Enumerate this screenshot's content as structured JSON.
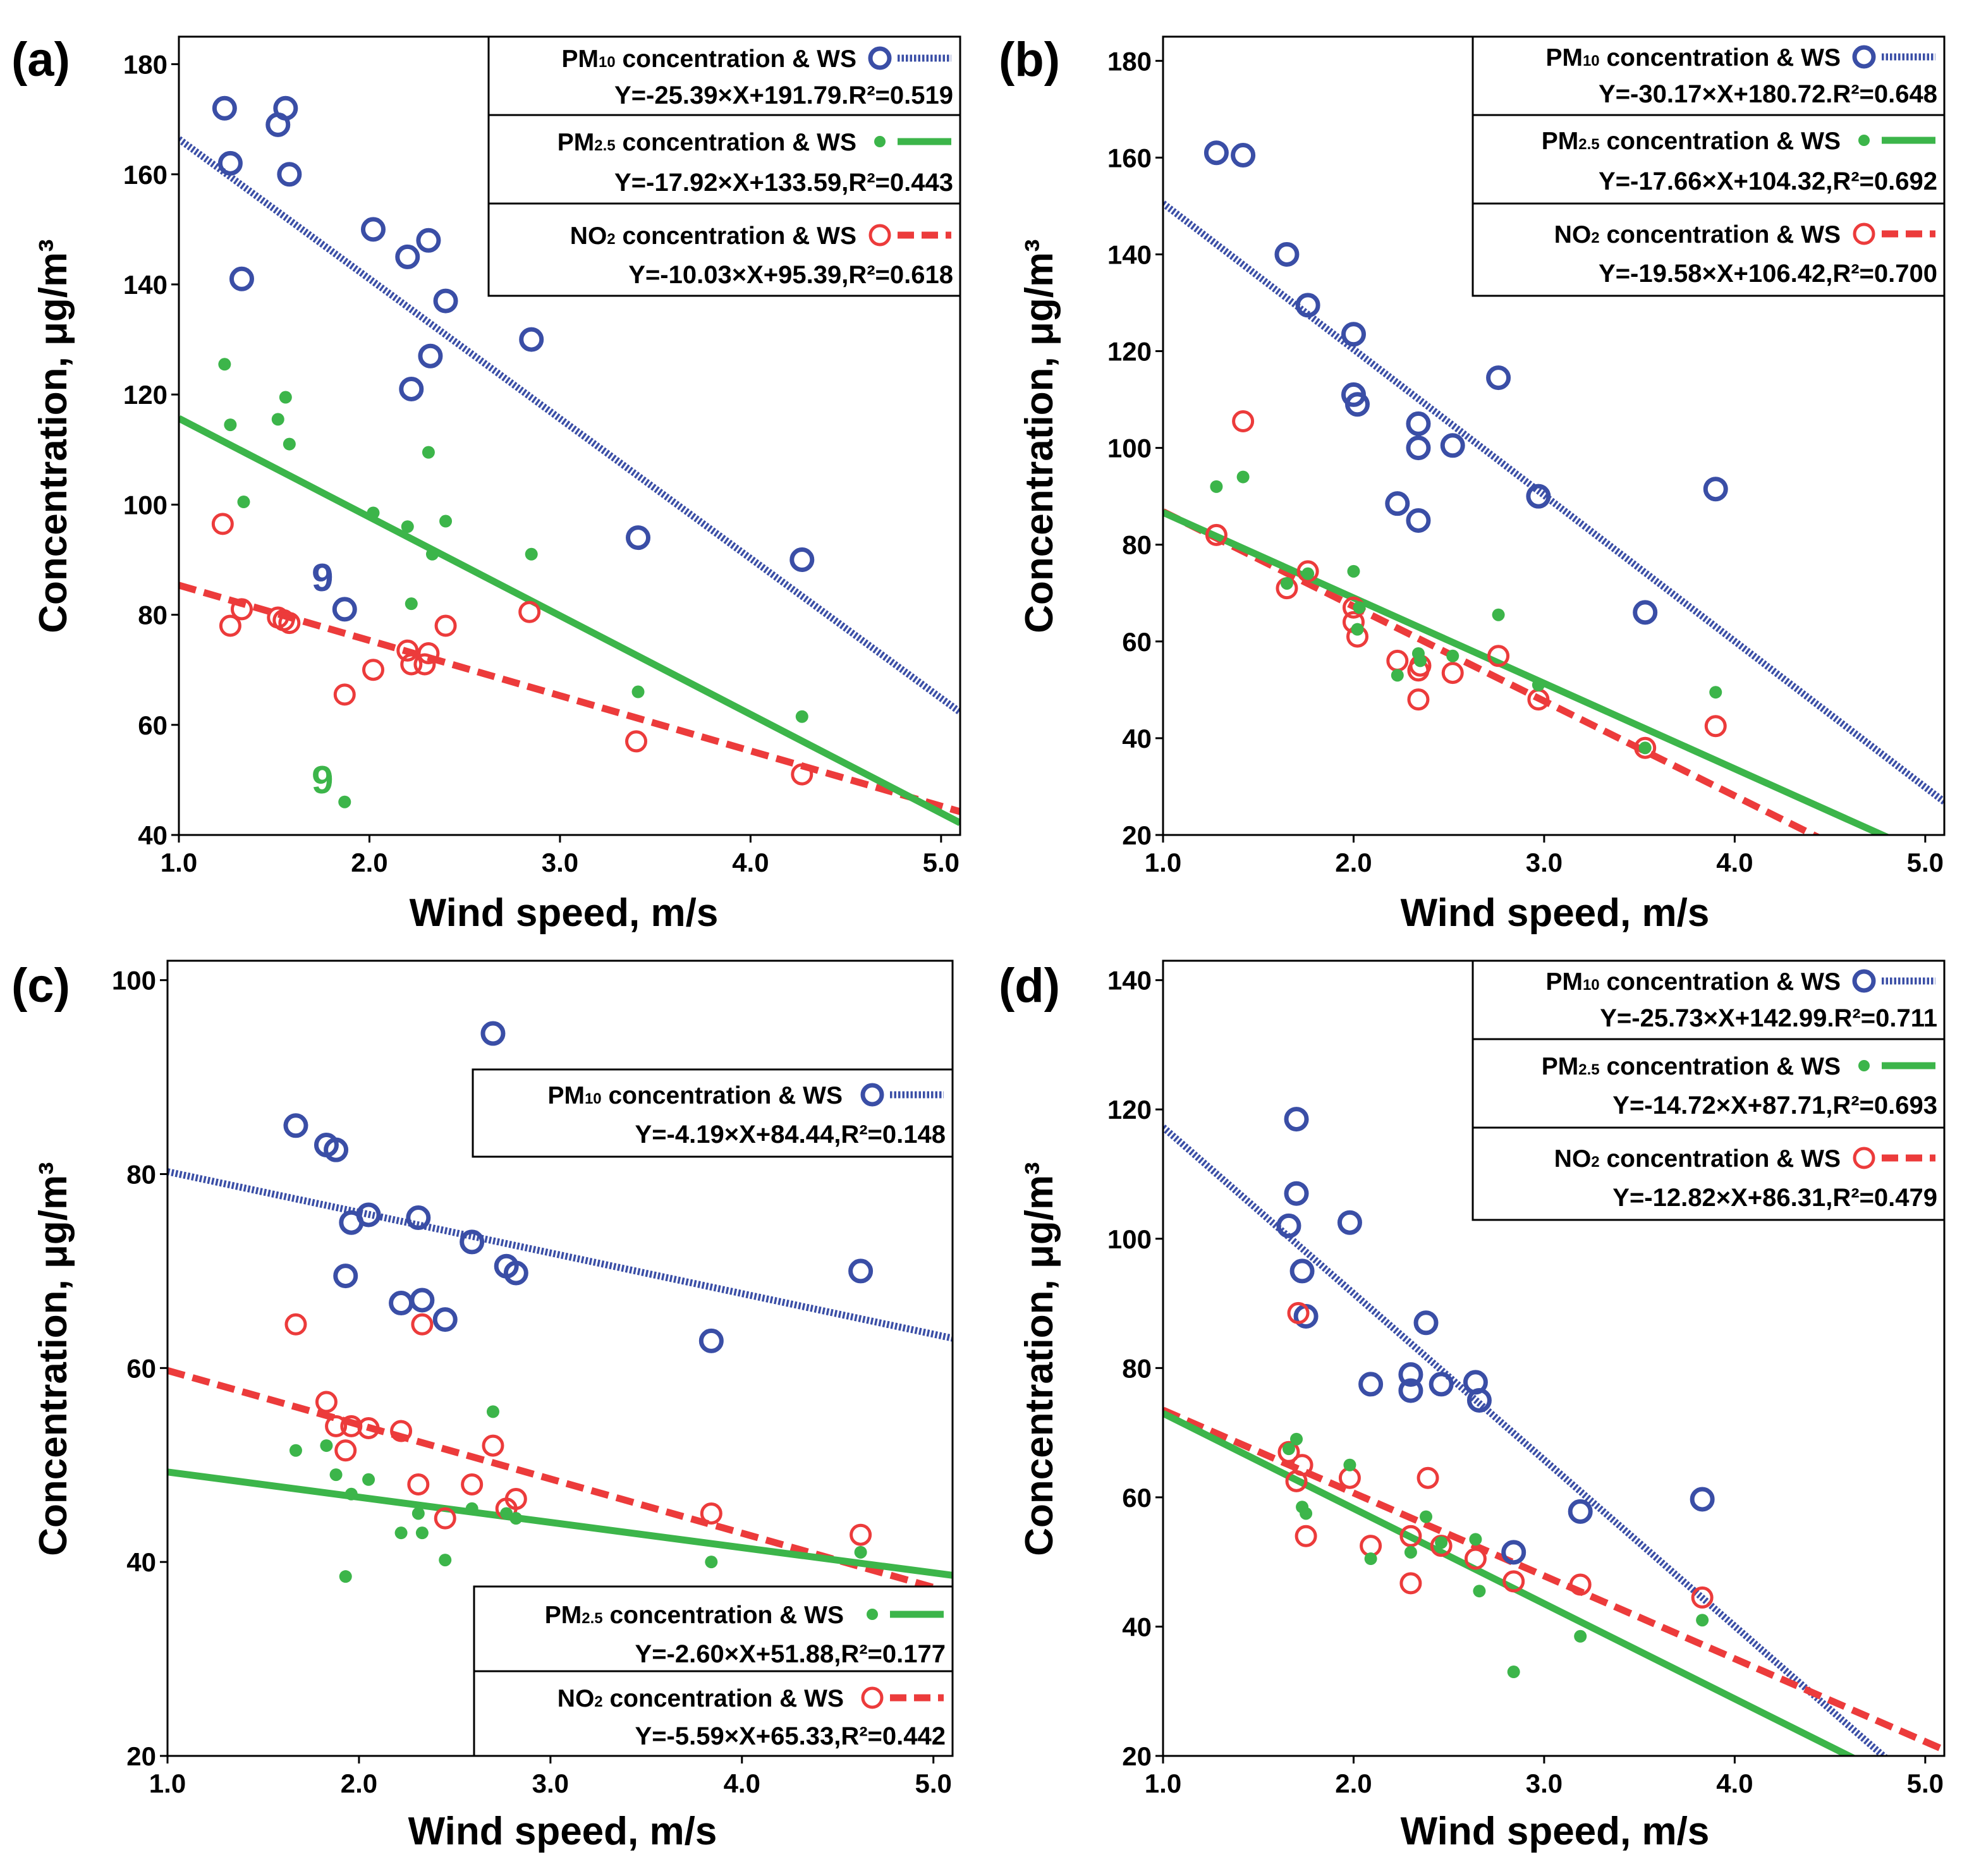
{
  "colors": {
    "pm10": "#3a4ea6",
    "pm25": "#3cb54a",
    "no2": "#ec3b3b",
    "axis": "#000000"
  },
  "chart_data": [
    {
      "type": "scatter",
      "panel_label": "(a)",
      "xlabel": "Wind speed, m/s",
      "ylabel": "Concentration, μg/m³",
      "xlim": [
        1.0,
        5.1
      ],
      "ylim": [
        40,
        185
      ],
      "xticks": [
        1.0,
        2.0,
        3.0,
        4.0,
        5.0
      ],
      "xtick_labels": [
        "1.0",
        "2.0",
        "3.0",
        "4.0",
        "5.0"
      ],
      "yticks": [
        40,
        60,
        80,
        100,
        120,
        140,
        160,
        180
      ],
      "ytick_labels": [
        "40",
        "60",
        "80",
        "100",
        "120",
        "140",
        "160",
        "180"
      ],
      "legend_position": "top-right",
      "annotations": [
        {
          "text": "9",
          "x": 1.78,
          "y": 86,
          "series": "pm10"
        },
        {
          "text": "9",
          "x": 1.78,
          "y": 50,
          "series": "pm25"
        }
      ],
      "series": [
        {
          "key": "pm10",
          "label": "PM10 concentration & WS",
          "sub": "10",
          "equation": "Y=-25.39×X+191.79.R²=0.519",
          "slope": -25.39,
          "intercept": 191.79,
          "points": [
            [
              1.24,
              172
            ],
            [
              1.27,
              162
            ],
            [
              1.33,
              141
            ],
            [
              1.52,
              169
            ],
            [
              1.56,
              172
            ],
            [
              1.58,
              160
            ],
            [
              1.87,
              81
            ],
            [
              2.02,
              150
            ],
            [
              2.2,
              145
            ],
            [
              2.22,
              121
            ],
            [
              2.31,
              148
            ],
            [
              2.32,
              127
            ],
            [
              2.4,
              137
            ],
            [
              2.85,
              130
            ],
            [
              3.41,
              94
            ],
            [
              4.27,
              90
            ]
          ]
        },
        {
          "key": "pm25",
          "label": "PM2.5 concentration & WS",
          "sub": "2.5",
          "equation": "Y=-17.92×X+133.59,R²=0.443",
          "slope": -17.92,
          "intercept": 133.59,
          "points": [
            [
              1.24,
              125.5
            ],
            [
              1.27,
              114.5
            ],
            [
              1.34,
              100.5
            ],
            [
              1.52,
              115.5
            ],
            [
              1.56,
              119.5
            ],
            [
              1.58,
              111
            ],
            [
              1.87,
              46
            ],
            [
              2.02,
              98.5
            ],
            [
              2.2,
              96
            ],
            [
              2.22,
              82
            ],
            [
              2.31,
              109.5
            ],
            [
              2.33,
              91
            ],
            [
              2.4,
              97
            ],
            [
              2.85,
              91
            ],
            [
              3.41,
              66
            ],
            [
              4.27,
              61.5
            ]
          ]
        },
        {
          "key": "no2",
          "label": "NO2 concentration & WS",
          "sub": "2",
          "equation": "Y=-10.03×X+95.39,R²=0.618",
          "slope": -10.03,
          "intercept": 95.39,
          "points": [
            [
              1.23,
              96.5
            ],
            [
              1.27,
              78
            ],
            [
              1.33,
              81
            ],
            [
              1.52,
              79.5
            ],
            [
              1.55,
              79
            ],
            [
              1.58,
              78.5
            ],
            [
              1.87,
              65.5
            ],
            [
              2.02,
              70
            ],
            [
              2.2,
              73.5
            ],
            [
              2.22,
              71
            ],
            [
              2.29,
              71
            ],
            [
              2.31,
              73
            ],
            [
              2.4,
              78
            ],
            [
              2.84,
              80.5
            ],
            [
              3.4,
              57
            ],
            [
              4.27,
              51
            ]
          ]
        }
      ]
    },
    {
      "type": "scatter",
      "panel_label": "(b)",
      "xlabel": "Wind speed, m/s",
      "ylabel": "Concentration, μg/m³",
      "xlim": [
        1.0,
        5.1
      ],
      "ylim": [
        20,
        185
      ],
      "xticks": [
        1.0,
        2.0,
        3.0,
        4.0,
        5.0
      ],
      "xtick_labels": [
        "1.0",
        "2.0",
        "3.0",
        "4.0",
        "5.0"
      ],
      "yticks": [
        20,
        40,
        60,
        80,
        100,
        120,
        140,
        160,
        180
      ],
      "ytick_labels": [
        "20",
        "40",
        "60",
        "80",
        "100",
        "120",
        "140",
        "160",
        "180"
      ],
      "legend_position": "top-right",
      "annotations": [],
      "series": [
        {
          "key": "pm10",
          "label": "PM10 concentration & WS",
          "sub": "10",
          "equation": "Y=-30.17×X+180.72.R²=0.648",
          "slope": -30.17,
          "intercept": 180.72,
          "points": [
            [
              1.28,
              161
            ],
            [
              1.42,
              160.5
            ],
            [
              1.65,
              140
            ],
            [
              1.76,
              129.5
            ],
            [
              2.0,
              123.5
            ],
            [
              2.0,
              111
            ],
            [
              2.02,
              109
            ],
            [
              2.23,
              88.5
            ],
            [
              2.34,
              105
            ],
            [
              2.34,
              100
            ],
            [
              2.34,
              85
            ],
            [
              2.52,
              100.5
            ],
            [
              2.76,
              114.5
            ],
            [
              2.97,
              90
            ],
            [
              3.53,
              66
            ],
            [
              3.9,
              91.5
            ]
          ]
        },
        {
          "key": "pm25",
          "label": "PM2.5 concentration & WS",
          "sub": "2.5",
          "equation": "Y=-17.66×X+104.32,R²=0.692",
          "slope": -17.66,
          "intercept": 104.32,
          "points": [
            [
              1.28,
              92
            ],
            [
              1.42,
              94
            ],
            [
              1.65,
              72
            ],
            [
              1.76,
              74
            ],
            [
              2.0,
              74.5
            ],
            [
              2.02,
              62.5
            ],
            [
              2.03,
              67
            ],
            [
              2.23,
              53
            ],
            [
              2.34,
              57.5
            ],
            [
              2.35,
              56
            ],
            [
              2.52,
              57
            ],
            [
              2.76,
              65.5
            ],
            [
              2.97,
              51
            ],
            [
              3.53,
              38
            ],
            [
              3.9,
              49.5
            ]
          ]
        },
        {
          "key": "no2",
          "label": "NO2 concentration & WS",
          "sub": "2",
          "equation": "Y=-19.58×X+106.42,R²=0.700",
          "slope": -19.58,
          "intercept": 106.42,
          "points": [
            [
              1.28,
              82
            ],
            [
              1.42,
              105.5
            ],
            [
              1.65,
              71
            ],
            [
              1.76,
              74.5
            ],
            [
              2.0,
              67
            ],
            [
              2.0,
              64
            ],
            [
              2.02,
              61
            ],
            [
              2.23,
              56
            ],
            [
              2.34,
              48
            ],
            [
              2.34,
              54
            ],
            [
              2.35,
              55
            ],
            [
              2.52,
              53.5
            ],
            [
              2.76,
              57
            ],
            [
              2.97,
              48
            ],
            [
              3.53,
              38
            ],
            [
              3.9,
              42.5
            ]
          ]
        }
      ]
    },
    {
      "type": "scatter",
      "panel_label": "(c)",
      "xlabel": "Wind speed, m/s",
      "ylabel": "Concentration, μg/m³",
      "xlim": [
        1.0,
        5.1
      ],
      "ylim": [
        20,
        102
      ],
      "xticks": [
        1.0,
        2.0,
        3.0,
        4.0,
        5.0
      ],
      "xtick_labels": [
        "1.0",
        "2.0",
        "3.0",
        "4.0",
        "5.0"
      ],
      "yticks": [
        20,
        40,
        60,
        80,
        100
      ],
      "ytick_labels": [
        "20",
        "40",
        "60",
        "80",
        "100"
      ],
      "legend_position": "split: PM10 top-right, PM2.5 and NO2 bottom-right",
      "annotations": [],
      "series": [
        {
          "key": "pm10",
          "label": "PM10 concentration & WS",
          "sub": "10",
          "equation": "Y=-4.19×X+84.44,R²=0.148",
          "slope": -4.19,
          "intercept": 84.44,
          "points": [
            [
              1.67,
              85
            ],
            [
              1.83,
              83
            ],
            [
              1.88,
              82.5
            ],
            [
              1.93,
              69.5
            ],
            [
              1.96,
              75
            ],
            [
              2.05,
              75.8
            ],
            [
              2.22,
              66.7
            ],
            [
              2.31,
              75.5
            ],
            [
              2.33,
              67
            ],
            [
              2.45,
              65
            ],
            [
              2.59,
              73
            ],
            [
              2.77,
              70.5
            ],
            [
              2.82,
              69.8
            ],
            [
              2.7,
              94.5
            ],
            [
              3.84,
              62.8
            ],
            [
              4.62,
              70
            ]
          ]
        },
        {
          "key": "pm25",
          "label": "PM2.5 concentration & WS",
          "sub": "2.5",
          "equation": "Y=-2.60×X+51.88,R²=0.177",
          "slope": -2.6,
          "intercept": 51.88,
          "points": [
            [
              1.67,
              51.5
            ],
            [
              1.83,
              52
            ],
            [
              1.88,
              49
            ],
            [
              1.93,
              38.5
            ],
            [
              1.96,
              47
            ],
            [
              2.05,
              48.5
            ],
            [
              2.22,
              43
            ],
            [
              2.31,
              45
            ],
            [
              2.33,
              43
            ],
            [
              2.45,
              40.2
            ],
            [
              2.59,
              45.5
            ],
            [
              2.7,
              55.5
            ],
            [
              2.77,
              45
            ],
            [
              2.82,
              44.5
            ],
            [
              3.84,
              40
            ],
            [
              4.62,
              41
            ]
          ]
        },
        {
          "key": "no2",
          "label": "NO2 concentration & WS",
          "sub": "2",
          "equation": "Y=-5.59×X+65.33,R²=0.442",
          "slope": -5.59,
          "intercept": 65.33,
          "points": [
            [
              1.67,
              64.5
            ],
            [
              1.83,
              56.5
            ],
            [
              1.88,
              54
            ],
            [
              1.93,
              51.5
            ],
            [
              1.96,
              54
            ],
            [
              2.05,
              53.8
            ],
            [
              2.22,
              53.5
            ],
            [
              2.31,
              48
            ],
            [
              2.33,
              64.5
            ],
            [
              2.45,
              44.5
            ],
            [
              2.59,
              48
            ],
            [
              2.7,
              52
            ],
            [
              2.77,
              45.5
            ],
            [
              2.82,
              46.5
            ],
            [
              3.84,
              45
            ],
            [
              4.62,
              42.8
            ]
          ]
        }
      ]
    },
    {
      "type": "scatter",
      "panel_label": "(d)",
      "xlabel": "Wind speed, m/s",
      "ylabel": "Concentration, μg/m³",
      "xlim": [
        1.0,
        5.1
      ],
      "ylim": [
        20,
        143
      ],
      "xticks": [
        1.0,
        2.0,
        3.0,
        4.0,
        5.0
      ],
      "xtick_labels": [
        "1.0",
        "2.0",
        "3.0",
        "4.0",
        "5.0"
      ],
      "yticks": [
        20,
        40,
        60,
        80,
        100,
        120,
        140
      ],
      "ytick_labels": [
        "20",
        "40",
        "60",
        "80",
        "100",
        "120",
        "140"
      ],
      "legend_position": "top-right",
      "annotations": [],
      "series": [
        {
          "key": "pm10",
          "label": "PM10 concentration & WS",
          "sub": "10",
          "equation": "Y=-25.73×X+142.99.R²=0.711",
          "slope": -25.73,
          "intercept": 142.99,
          "points": [
            [
              1.66,
              102
            ],
            [
              1.7,
              118.5
            ],
            [
              1.7,
              107
            ],
            [
              1.73,
              95
            ],
            [
              1.75,
              88
            ],
            [
              1.98,
              102.5
            ],
            [
              2.09,
              77.5
            ],
            [
              2.3,
              79
            ],
            [
              2.3,
              76.5
            ],
            [
              2.38,
              87
            ],
            [
              2.46,
              77.5
            ],
            [
              2.64,
              77.8
            ],
            [
              2.66,
              75
            ],
            [
              2.84,
              51.5
            ],
            [
              3.19,
              57.8
            ],
            [
              3.83,
              59.7
            ]
          ]
        },
        {
          "key": "pm25",
          "label": "PM2.5 concentration & WS",
          "sub": "2.5",
          "equation": "Y=-14.72×X+87.71,R²=0.693",
          "slope": -14.72,
          "intercept": 87.71,
          "points": [
            [
              1.66,
              67.5
            ],
            [
              1.7,
              69
            ],
            [
              1.73,
              58.5
            ],
            [
              1.75,
              57.5
            ],
            [
              1.98,
              65
            ],
            [
              2.09,
              50.5
            ],
            [
              2.3,
              51.5
            ],
            [
              2.38,
              57
            ],
            [
              2.46,
              53
            ],
            [
              2.64,
              53.5
            ],
            [
              2.66,
              45.5
            ],
            [
              2.84,
              33
            ],
            [
              3.19,
              38.5
            ],
            [
              3.83,
              41
            ]
          ]
        },
        {
          "key": "no2",
          "label": "NO2 concentration & WS",
          "sub": "2",
          "equation": "Y=-12.82×X+86.31,R²=0.479",
          "slope": -12.82,
          "intercept": 86.31,
          "points": [
            [
              1.66,
              67
            ],
            [
              1.7,
              62.5
            ],
            [
              1.71,
              88.5
            ],
            [
              1.73,
              65
            ],
            [
              1.75,
              54
            ],
            [
              1.98,
              63
            ],
            [
              2.09,
              52.5
            ],
            [
              2.3,
              54
            ],
            [
              2.3,
              46.7
            ],
            [
              2.39,
              63
            ],
            [
              2.46,
              52.5
            ],
            [
              2.64,
              50.5
            ],
            [
              2.84,
              47
            ],
            [
              3.19,
              46.5
            ],
            [
              3.83,
              44.5
            ]
          ]
        }
      ]
    }
  ]
}
